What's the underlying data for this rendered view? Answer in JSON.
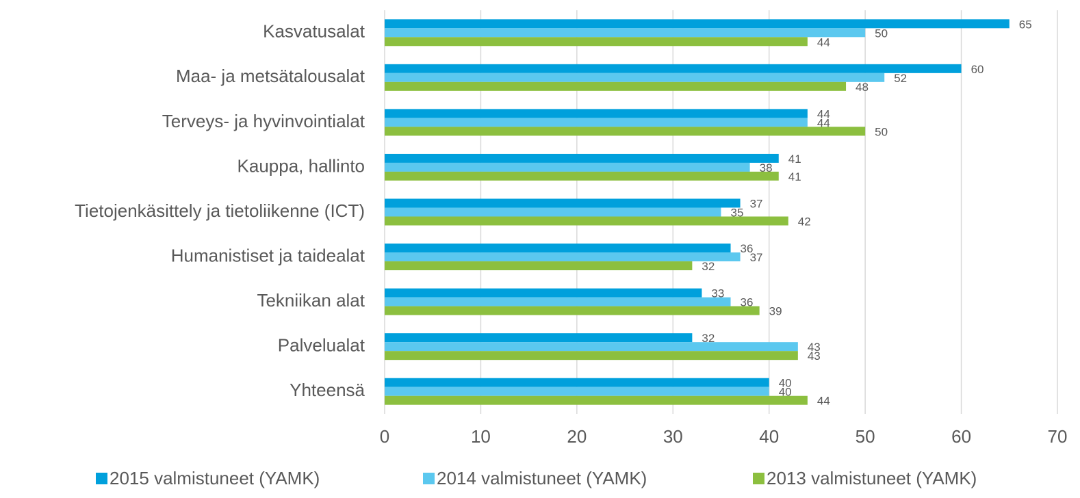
{
  "chart_data": {
    "type": "hbar",
    "categories": [
      "Kasvatusalat",
      "Maa- ja metsätalousalat",
      "Terveys- ja hyvinvointialat",
      "Kauppa, hallinto",
      "Tietojenkäsittely ja tietoliikenne (ICT)",
      "Humanistiset ja taidealat",
      "Tekniikan alat",
      "Palvelualat",
      "Yhteensä"
    ],
    "series": [
      {
        "name": "2015 valmistuneet (YAMK)",
        "color": "#00a0dc",
        "values": [
          65,
          60,
          44,
          41,
          37,
          36,
          33,
          32,
          40
        ]
      },
      {
        "name": "2014 valmistuneet (YAMK)",
        "color": "#5bc8ef",
        "values": [
          50,
          52,
          44,
          38,
          35,
          37,
          36,
          43,
          40
        ]
      },
      {
        "name": "2013 valmistuneet (YAMK)",
        "color": "#8cbf3f",
        "values": [
          44,
          48,
          50,
          41,
          42,
          32,
          39,
          43,
          44
        ]
      }
    ],
    "xlim": [
      0,
      70
    ],
    "xticks": [
      0,
      10,
      20,
      30,
      40,
      50,
      60,
      70
    ],
    "grid": true,
    "legend": "bottom"
  }
}
